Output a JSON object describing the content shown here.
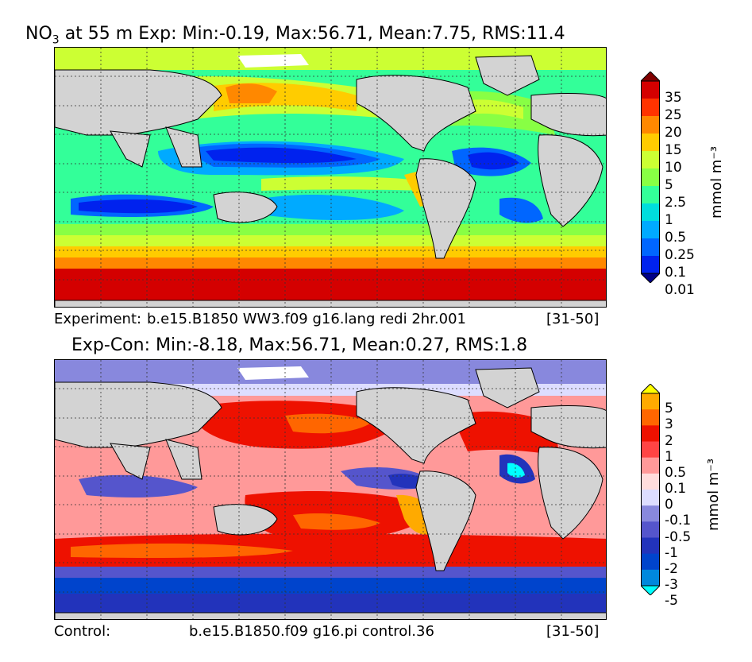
{
  "panel1": {
    "title_prefix": "NO",
    "title_sub": "3",
    "title_rest": " at 55 m Exp: Min:-0.19, Max:56.71, Mean:7.75, RMS:11.4",
    "footer_left": "Experiment:",
    "footer_mid": "b.e15.B1850 WW3.f09 g16.lang redi 2hr.001",
    "footer_right": "[31-50]",
    "colorbar": {
      "labels": [
        "35",
        "25",
        "20",
        "15",
        "10",
        "5",
        "2.5",
        "1",
        "0.5",
        "0.25",
        "0.1",
        "0.01"
      ],
      "colors": [
        "#800000",
        "#d40000",
        "#ff3300",
        "#ff8800",
        "#ffcc00",
        "#ccff33",
        "#88ff44",
        "#33ff99",
        "#00dddd",
        "#00aaff",
        "#0066ff",
        "#0022ee",
        "#000088"
      ],
      "unit": "mmol m⁻³"
    }
  },
  "panel2": {
    "title": "Exp-Con: Min:-8.18, Max:56.71, Mean:0.27, RMS:1.8",
    "footer_left": "Control:",
    "footer_mid": "b.e15.B1850.f09 g16.pi control.36",
    "footer_right": "[31-50]",
    "colorbar": {
      "labels": [
        "5",
        "3",
        "2",
        "1",
        "0.5",
        "0.1",
        "0",
        "-0.1",
        "-0.5",
        "-1",
        "-2",
        "-3",
        "-5"
      ],
      "colors": [
        "#ffff00",
        "#ffaa00",
        "#ff6600",
        "#ee1100",
        "#ff4444",
        "#ff9999",
        "#ffdddd",
        "#ddddff",
        "#8888dd",
        "#5555cc",
        "#2233bb",
        "#0044cc",
        "#0088dd",
        "#00ffff"
      ],
      "unit": "mmol m⁻³"
    }
  }
}
